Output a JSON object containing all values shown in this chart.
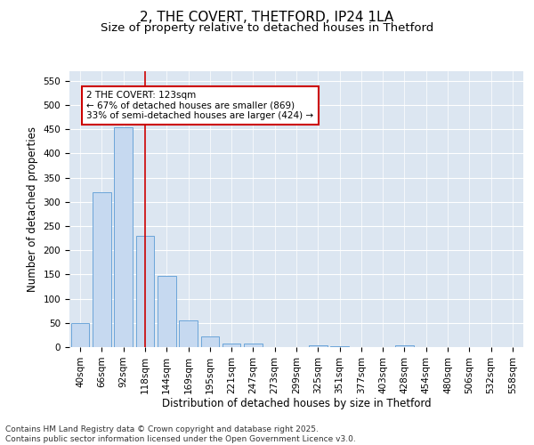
{
  "title_line1": "2, THE COVERT, THETFORD, IP24 1LA",
  "title_line2": "Size of property relative to detached houses in Thetford",
  "xlabel": "Distribution of detached houses by size in Thetford",
  "ylabel": "Number of detached properties",
  "categories": [
    "40sqm",
    "66sqm",
    "92sqm",
    "118sqm",
    "144sqm",
    "169sqm",
    "195sqm",
    "221sqm",
    "247sqm",
    "273sqm",
    "299sqm",
    "325sqm",
    "351sqm",
    "377sqm",
    "403sqm",
    "428sqm",
    "454sqm",
    "480sqm",
    "506sqm",
    "532sqm",
    "558sqm"
  ],
  "values": [
    50,
    320,
    455,
    230,
    148,
    55,
    22,
    8,
    8,
    0,
    0,
    3,
    1,
    0,
    0,
    3,
    0,
    0,
    0,
    0,
    0
  ],
  "bar_color": "#c6d9f0",
  "bar_edge_color": "#5b9bd5",
  "ref_line_color": "#cc0000",
  "ref_line_x": 3.0,
  "annotation_text": "2 THE COVERT: 123sqm\n← 67% of detached houses are smaller (869)\n33% of semi-detached houses are larger (424) →",
  "annotation_box_color": "#cc0000",
  "ylim": [
    0,
    570
  ],
  "yticks": [
    0,
    50,
    100,
    150,
    200,
    250,
    300,
    350,
    400,
    450,
    500,
    550
  ],
  "background_color": "#dce6f1",
  "footer_text": "Contains HM Land Registry data © Crown copyright and database right 2025.\nContains public sector information licensed under the Open Government Licence v3.0.",
  "title_fontsize": 11,
  "subtitle_fontsize": 9.5,
  "axis_label_fontsize": 8.5,
  "tick_fontsize": 7.5,
  "footer_fontsize": 6.5,
  "annot_fontsize": 7.5
}
